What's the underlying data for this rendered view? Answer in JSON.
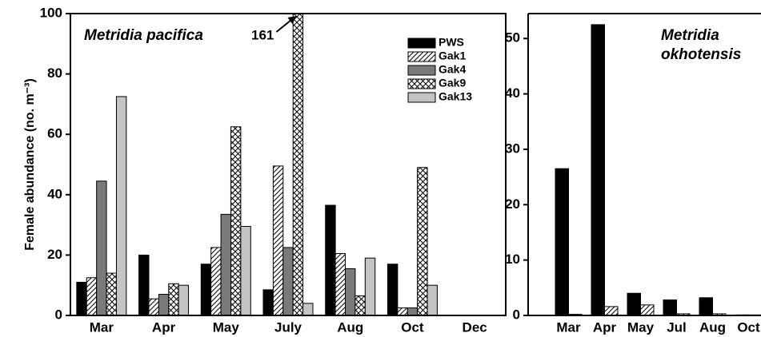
{
  "chart_data": [
    {
      "type": "bar",
      "title": "Metridia pacifica",
      "ylabel": "Female abundance (no. m⁻³)",
      "categories": [
        "Mar",
        "Apr",
        "May",
        "July",
        "Aug",
        "Oct",
        "Dec"
      ],
      "series": [
        {
          "name": "PWS",
          "color": "#000000",
          "pattern": "solid",
          "values": [
            11,
            20,
            17,
            8.5,
            36.5,
            17,
            null
          ]
        },
        {
          "name": "Gak1",
          "color": "#ffffff",
          "pattern": "diagonal",
          "values": [
            12.5,
            5.5,
            22.5,
            49.5,
            20.5,
            2.5,
            null
          ]
        },
        {
          "name": "Gak4",
          "color": "#7a7a7a",
          "pattern": "solid",
          "values": [
            44.5,
            7,
            33.5,
            22.5,
            15.5,
            2.5,
            null
          ]
        },
        {
          "name": "Gak9",
          "color": "#ffffff",
          "pattern": "cross",
          "values": [
            14,
            10.5,
            62.5,
            161,
            6.5,
            49,
            null
          ],
          "value_labels": [
            null,
            null,
            null,
            "161",
            null,
            null,
            null
          ]
        },
        {
          "name": "Gak13",
          "color": "#c4c4c4",
          "pattern": "solid",
          "values": [
            72.5,
            10,
            29.5,
            4,
            19,
            10,
            null
          ]
        }
      ],
      "ylim": [
        0,
        100
      ],
      "yticks": [
        0,
        20,
        40,
        60,
        80,
        100
      ],
      "legend": "upper right"
    },
    {
      "type": "bar",
      "title_lines": [
        "Metridia",
        "okhotensis"
      ],
      "categories": [
        "Mar",
        "Apr",
        "May",
        "Jul",
        "Aug",
        "Oct"
      ],
      "series": [
        {
          "name": "PWS",
          "color": "#000000",
          "pattern": "solid",
          "values": [
            26.5,
            52.5,
            4,
            2.8,
            3.2,
            0.1
          ]
        },
        {
          "name": "Gak1",
          "color": "#ffffff",
          "pattern": "diagonal",
          "values": [
            0.2,
            1.6,
            1.9,
            0.3,
            0.3,
            0.1
          ]
        }
      ],
      "ylim": [
        0,
        54.5
      ],
      "yticks": [
        0,
        10,
        20,
        30,
        40,
        50
      ]
    }
  ]
}
